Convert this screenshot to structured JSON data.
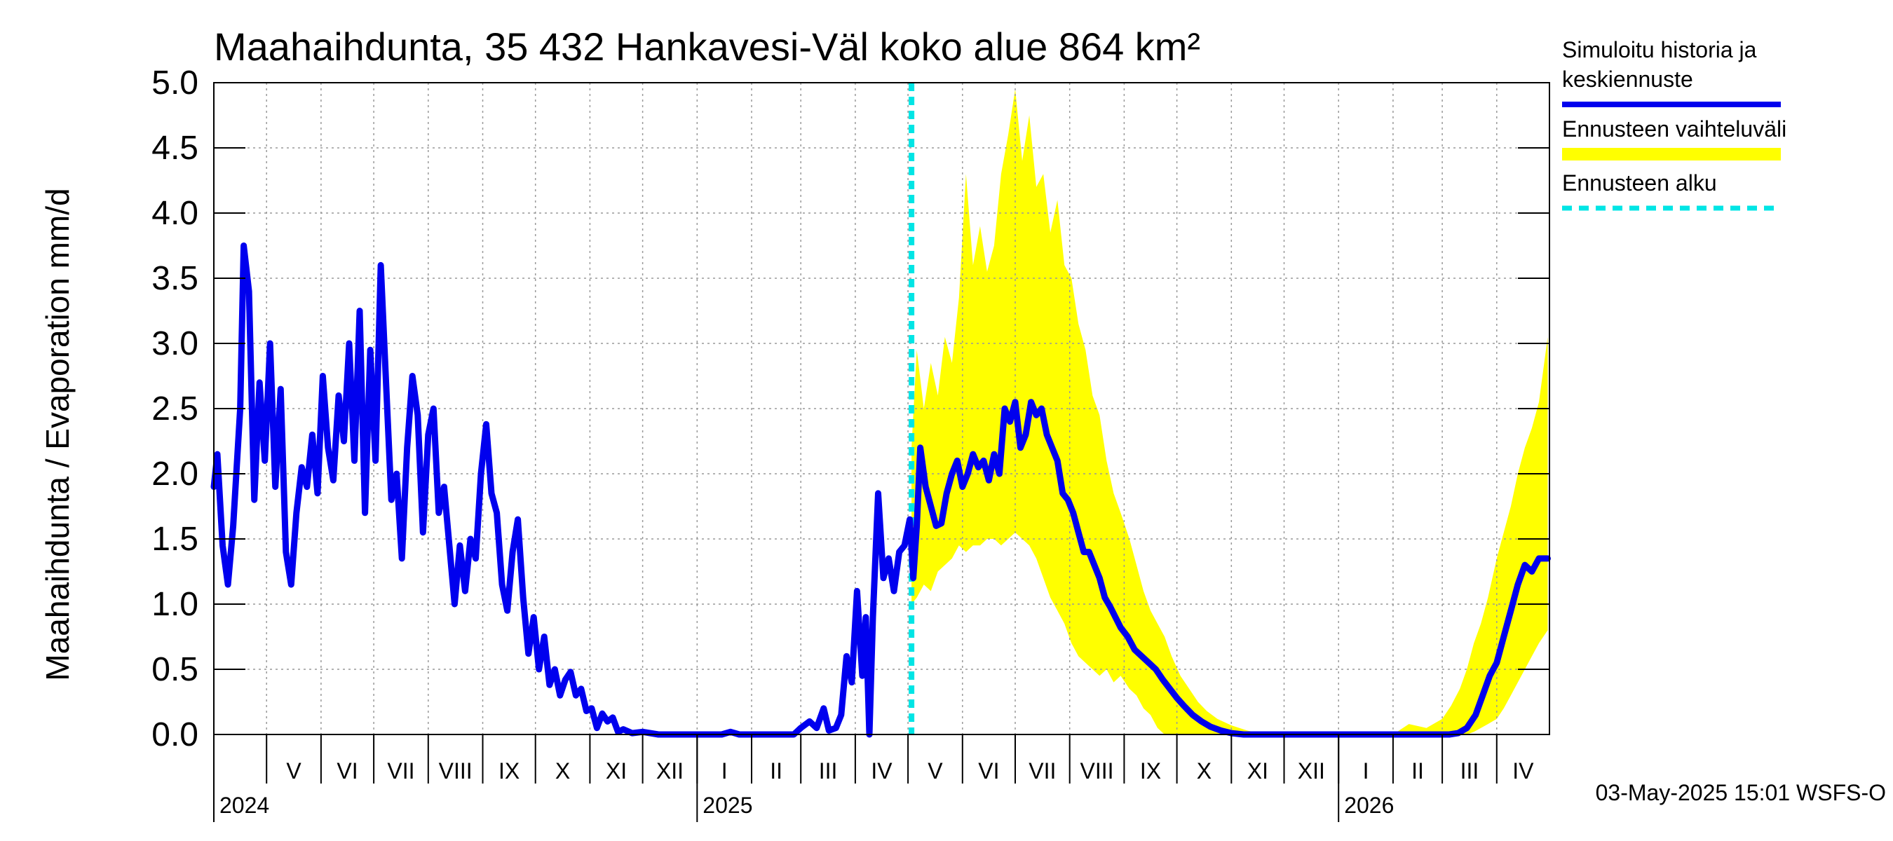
{
  "chart_data": {
    "type": "line",
    "title": "Maahaihdunta, 35 432 Hankavesi-Väl koko alue 864 km²",
    "ylabel": "Maahaihdunta / Evaporation   mm/d",
    "ylim": [
      0.0,
      5.0
    ],
    "yticks": [
      "0.0",
      "0.5",
      "1.0",
      "1.5",
      "2.0",
      "2.5",
      "3.0",
      "3.5",
      "4.0",
      "4.5",
      "5.0"
    ],
    "x_start": "2024-04-01",
    "x_end": "2026-04-30",
    "forecast_start": "2025-05-03",
    "months": [
      {
        "label": "V",
        "start": "2024-05-01"
      },
      {
        "label": "VI",
        "start": "2024-06-01"
      },
      {
        "label": "VII",
        "start": "2024-07-01"
      },
      {
        "label": "VIII",
        "start": "2024-08-01"
      },
      {
        "label": "IX",
        "start": "2024-09-01"
      },
      {
        "label": "X",
        "start": "2024-10-01"
      },
      {
        "label": "XI",
        "start": "2024-11-01"
      },
      {
        "label": "XII",
        "start": "2024-12-01"
      },
      {
        "label": "I",
        "start": "2025-01-01"
      },
      {
        "label": "II",
        "start": "2025-02-01"
      },
      {
        "label": "III",
        "start": "2025-03-01"
      },
      {
        "label": "IV",
        "start": "2025-04-01"
      },
      {
        "label": "V",
        "start": "2025-05-01"
      },
      {
        "label": "VI",
        "start": "2025-06-01"
      },
      {
        "label": "VII",
        "start": "2025-07-01"
      },
      {
        "label": "VIII",
        "start": "2025-08-01"
      },
      {
        "label": "IX",
        "start": "2025-09-01"
      },
      {
        "label": "X",
        "start": "2025-10-01"
      },
      {
        "label": "XI",
        "start": "2025-11-01"
      },
      {
        "label": "XII",
        "start": "2025-12-01"
      },
      {
        "label": "I",
        "start": "2026-01-01"
      },
      {
        "label": "II",
        "start": "2026-02-01"
      },
      {
        "label": "III",
        "start": "2026-03-01"
      },
      {
        "label": "IV",
        "start": "2026-04-01"
      }
    ],
    "years": [
      {
        "label": "2024",
        "at": "2024-04-01"
      },
      {
        "label": "2025",
        "at": "2025-01-01"
      },
      {
        "label": "2026",
        "at": "2026-01-01"
      }
    ],
    "series": [
      {
        "name": "Simuloitu historia ja keskiennuste",
        "color": "#0000ee",
        "points": [
          [
            "2024-04-01",
            1.9
          ],
          [
            "2024-04-03",
            2.15
          ],
          [
            "2024-04-06",
            1.45
          ],
          [
            "2024-04-09",
            1.15
          ],
          [
            "2024-04-12",
            1.6
          ],
          [
            "2024-04-16",
            2.5
          ],
          [
            "2024-04-18",
            3.75
          ],
          [
            "2024-04-21",
            3.4
          ],
          [
            "2024-04-24",
            1.8
          ],
          [
            "2024-04-27",
            2.7
          ],
          [
            "2024-04-30",
            2.1
          ],
          [
            "2024-05-03",
            3.0
          ],
          [
            "2024-05-06",
            1.9
          ],
          [
            "2024-05-09",
            2.65
          ],
          [
            "2024-05-12",
            1.4
          ],
          [
            "2024-05-15",
            1.15
          ],
          [
            "2024-05-18",
            1.7
          ],
          [
            "2024-05-21",
            2.05
          ],
          [
            "2024-05-24",
            1.9
          ],
          [
            "2024-05-27",
            2.3
          ],
          [
            "2024-05-30",
            1.85
          ],
          [
            "2024-06-02",
            2.75
          ],
          [
            "2024-06-05",
            2.2
          ],
          [
            "2024-06-08",
            1.95
          ],
          [
            "2024-06-11",
            2.6
          ],
          [
            "2024-06-14",
            2.25
          ],
          [
            "2024-06-17",
            3.0
          ],
          [
            "2024-06-20",
            2.1
          ],
          [
            "2024-06-23",
            3.25
          ],
          [
            "2024-06-26",
            1.7
          ],
          [
            "2024-06-29",
            2.95
          ],
          [
            "2024-07-02",
            2.1
          ],
          [
            "2024-07-05",
            3.6
          ],
          [
            "2024-07-08",
            2.7
          ],
          [
            "2024-07-11",
            1.8
          ],
          [
            "2024-07-14",
            2.0
          ],
          [
            "2024-07-17",
            1.35
          ],
          [
            "2024-07-20",
            2.2
          ],
          [
            "2024-07-23",
            2.75
          ],
          [
            "2024-07-26",
            2.45
          ],
          [
            "2024-07-29",
            1.55
          ],
          [
            "2024-08-01",
            2.3
          ],
          [
            "2024-08-04",
            2.5
          ],
          [
            "2024-08-07",
            1.7
          ],
          [
            "2024-08-10",
            1.9
          ],
          [
            "2024-08-13",
            1.45
          ],
          [
            "2024-08-16",
            1.0
          ],
          [
            "2024-08-19",
            1.45
          ],
          [
            "2024-08-22",
            1.1
          ],
          [
            "2024-08-25",
            1.5
          ],
          [
            "2024-08-28",
            1.35
          ],
          [
            "2024-08-31",
            2.0
          ],
          [
            "2024-09-03",
            2.38
          ],
          [
            "2024-09-06",
            1.85
          ],
          [
            "2024-09-09",
            1.7
          ],
          [
            "2024-09-12",
            1.15
          ],
          [
            "2024-09-15",
            0.95
          ],
          [
            "2024-09-18",
            1.4
          ],
          [
            "2024-09-21",
            1.65
          ],
          [
            "2024-09-24",
            1.05
          ],
          [
            "2024-09-27",
            0.62
          ],
          [
            "2024-09-30",
            0.9
          ],
          [
            "2024-10-03",
            0.5
          ],
          [
            "2024-10-06",
            0.75
          ],
          [
            "2024-10-09",
            0.38
          ],
          [
            "2024-10-12",
            0.5
          ],
          [
            "2024-10-15",
            0.3
          ],
          [
            "2024-10-18",
            0.42
          ],
          [
            "2024-10-21",
            0.48
          ],
          [
            "2024-10-24",
            0.3
          ],
          [
            "2024-10-27",
            0.35
          ],
          [
            "2024-10-30",
            0.18
          ],
          [
            "2024-11-02",
            0.2
          ],
          [
            "2024-11-05",
            0.05
          ],
          [
            "2024-11-08",
            0.16
          ],
          [
            "2024-11-11",
            0.1
          ],
          [
            "2024-11-14",
            0.13
          ],
          [
            "2024-11-17",
            0.02
          ],
          [
            "2024-11-20",
            0.04
          ],
          [
            "2024-11-25",
            0.01
          ],
          [
            "2024-12-01",
            0.02
          ],
          [
            "2024-12-10",
            0.0
          ],
          [
            "2025-01-15",
            0.0
          ],
          [
            "2025-01-20",
            0.02
          ],
          [
            "2025-01-25",
            0.0
          ],
          [
            "2025-02-25",
            0.0
          ],
          [
            "2025-03-01",
            0.05
          ],
          [
            "2025-03-06",
            0.1
          ],
          [
            "2025-03-10",
            0.05
          ],
          [
            "2025-03-14",
            0.2
          ],
          [
            "2025-03-17",
            0.03
          ],
          [
            "2025-03-21",
            0.05
          ],
          [
            "2025-03-24",
            0.15
          ],
          [
            "2025-03-27",
            0.6
          ],
          [
            "2025-03-30",
            0.4
          ],
          [
            "2025-04-02",
            1.1
          ],
          [
            "2025-04-05",
            0.45
          ],
          [
            "2025-04-07",
            0.9
          ],
          [
            "2025-04-09",
            0.0
          ],
          [
            "2025-04-11",
            0.9
          ],
          [
            "2025-04-14",
            1.85
          ],
          [
            "2025-04-17",
            1.2
          ],
          [
            "2025-04-20",
            1.35
          ],
          [
            "2025-04-23",
            1.1
          ],
          [
            "2025-04-26",
            1.4
          ],
          [
            "2025-04-29",
            1.45
          ],
          [
            "2025-05-02",
            1.65
          ],
          [
            "2025-05-04",
            1.2
          ],
          [
            "2025-05-06",
            1.6
          ],
          [
            "2025-05-08",
            2.2
          ],
          [
            "2025-05-11",
            1.9
          ],
          [
            "2025-05-14",
            1.75
          ],
          [
            "2025-05-17",
            1.6
          ],
          [
            "2025-05-20",
            1.62
          ],
          [
            "2025-05-23",
            1.85
          ],
          [
            "2025-05-26",
            2.0
          ],
          [
            "2025-05-29",
            2.1
          ],
          [
            "2025-06-01",
            1.9
          ],
          [
            "2025-06-04",
            2.0
          ],
          [
            "2025-06-07",
            2.15
          ],
          [
            "2025-06-10",
            2.05
          ],
          [
            "2025-06-13",
            2.1
          ],
          [
            "2025-06-16",
            1.95
          ],
          [
            "2025-06-19",
            2.15
          ],
          [
            "2025-06-22",
            2.0
          ],
          [
            "2025-06-25",
            2.5
          ],
          [
            "2025-06-28",
            2.4
          ],
          [
            "2025-07-01",
            2.55
          ],
          [
            "2025-07-04",
            2.2
          ],
          [
            "2025-07-07",
            2.3
          ],
          [
            "2025-07-10",
            2.55
          ],
          [
            "2025-07-13",
            2.45
          ],
          [
            "2025-07-16",
            2.5
          ],
          [
            "2025-07-19",
            2.3
          ],
          [
            "2025-07-22",
            2.2
          ],
          [
            "2025-07-25",
            2.1
          ],
          [
            "2025-07-28",
            1.85
          ],
          [
            "2025-07-31",
            1.8
          ],
          [
            "2025-08-03",
            1.7
          ],
          [
            "2025-08-06",
            1.55
          ],
          [
            "2025-08-09",
            1.4
          ],
          [
            "2025-08-12",
            1.4
          ],
          [
            "2025-08-15",
            1.3
          ],
          [
            "2025-08-18",
            1.2
          ],
          [
            "2025-08-21",
            1.05
          ],
          [
            "2025-08-24",
            0.98
          ],
          [
            "2025-08-27",
            0.9
          ],
          [
            "2025-08-30",
            0.82
          ],
          [
            "2025-09-03",
            0.75
          ],
          [
            "2025-09-07",
            0.65
          ],
          [
            "2025-09-11",
            0.6
          ],
          [
            "2025-09-15",
            0.55
          ],
          [
            "2025-09-19",
            0.5
          ],
          [
            "2025-09-23",
            0.42
          ],
          [
            "2025-09-27",
            0.35
          ],
          [
            "2025-10-01",
            0.28
          ],
          [
            "2025-10-05",
            0.22
          ],
          [
            "2025-10-10",
            0.15
          ],
          [
            "2025-10-15",
            0.1
          ],
          [
            "2025-10-20",
            0.06
          ],
          [
            "2025-10-26",
            0.03
          ],
          [
            "2025-11-01",
            0.01
          ],
          [
            "2025-11-08",
            0.0
          ],
          [
            "2026-03-05",
            0.0
          ],
          [
            "2026-03-10",
            0.01
          ],
          [
            "2026-03-15",
            0.05
          ],
          [
            "2026-03-20",
            0.15
          ],
          [
            "2026-03-24",
            0.3
          ],
          [
            "2026-03-28",
            0.45
          ],
          [
            "2026-04-01",
            0.55
          ],
          [
            "2026-04-05",
            0.75
          ],
          [
            "2026-04-09",
            0.95
          ],
          [
            "2026-04-13",
            1.15
          ],
          [
            "2026-04-17",
            1.3
          ],
          [
            "2026-04-21",
            1.25
          ],
          [
            "2026-04-25",
            1.35
          ],
          [
            "2026-04-30",
            1.35
          ]
        ]
      }
    ],
    "band": {
      "name": "Ennusteen vaihteluväli",
      "color": "#ffff00",
      "points": [
        [
          "2025-05-03",
          1.0,
          2.2
        ],
        [
          "2025-05-06",
          1.05,
          2.95
        ],
        [
          "2025-05-10",
          1.15,
          2.5
        ],
        [
          "2025-05-14",
          1.1,
          2.85
        ],
        [
          "2025-05-18",
          1.25,
          2.6
        ],
        [
          "2025-05-22",
          1.3,
          3.05
        ],
        [
          "2025-05-26",
          1.35,
          2.85
        ],
        [
          "2025-05-30",
          1.45,
          3.35
        ],
        [
          "2025-06-03",
          1.4,
          4.3
        ],
        [
          "2025-06-07",
          1.45,
          3.6
        ],
        [
          "2025-06-11",
          1.45,
          3.9
        ],
        [
          "2025-06-15",
          1.5,
          3.55
        ],
        [
          "2025-06-19",
          1.5,
          3.75
        ],
        [
          "2025-06-23",
          1.45,
          4.3
        ],
        [
          "2025-06-27",
          1.5,
          4.6
        ],
        [
          "2025-07-01",
          1.55,
          4.95
        ],
        [
          "2025-07-05",
          1.5,
          4.4
        ],
        [
          "2025-07-09",
          1.45,
          4.75
        ],
        [
          "2025-07-13",
          1.35,
          4.2
        ],
        [
          "2025-07-17",
          1.2,
          4.3
        ],
        [
          "2025-07-21",
          1.05,
          3.85
        ],
        [
          "2025-07-25",
          0.95,
          4.1
        ],
        [
          "2025-07-29",
          0.85,
          3.6
        ],
        [
          "2025-08-02",
          0.7,
          3.5
        ],
        [
          "2025-08-06",
          0.6,
          3.15
        ],
        [
          "2025-08-10",
          0.55,
          2.95
        ],
        [
          "2025-08-14",
          0.5,
          2.6
        ],
        [
          "2025-08-18",
          0.45,
          2.45
        ],
        [
          "2025-08-22",
          0.5,
          2.1
        ],
        [
          "2025-08-26",
          0.4,
          1.85
        ],
        [
          "2025-08-30",
          0.45,
          1.7
        ],
        [
          "2025-09-04",
          0.35,
          1.5
        ],
        [
          "2025-09-08",
          0.3,
          1.3
        ],
        [
          "2025-09-12",
          0.2,
          1.1
        ],
        [
          "2025-09-16",
          0.15,
          0.95
        ],
        [
          "2025-09-20",
          0.05,
          0.85
        ],
        [
          "2025-09-24",
          0.0,
          0.75
        ],
        [
          "2025-09-28",
          0.0,
          0.6
        ],
        [
          "2025-10-03",
          0.0,
          0.45
        ],
        [
          "2025-10-08",
          0.0,
          0.35
        ],
        [
          "2025-10-13",
          0.0,
          0.25
        ],
        [
          "2025-10-18",
          0.0,
          0.18
        ],
        [
          "2025-10-24",
          0.0,
          0.12
        ],
        [
          "2025-11-01",
          0.0,
          0.07
        ],
        [
          "2025-11-10",
          0.0,
          0.03
        ],
        [
          "2025-11-20",
          0.0,
          0.0
        ],
        [
          "2026-02-01",
          0.0,
          0.0
        ],
        [
          "2026-02-10",
          0.0,
          0.08
        ],
        [
          "2026-02-20",
          0.0,
          0.05
        ],
        [
          "2026-03-01",
          0.0,
          0.12
        ],
        [
          "2026-03-06",
          0.0,
          0.22
        ],
        [
          "2026-03-11",
          0.0,
          0.35
        ],
        [
          "2026-03-15",
          0.0,
          0.5
        ],
        [
          "2026-03-19",
          0.02,
          0.7
        ],
        [
          "2026-03-23",
          0.05,
          0.85
        ],
        [
          "2026-03-27",
          0.08,
          1.05
        ],
        [
          "2026-04-01",
          0.12,
          1.35
        ],
        [
          "2026-04-05",
          0.2,
          1.55
        ],
        [
          "2026-04-09",
          0.3,
          1.75
        ],
        [
          "2026-04-13",
          0.4,
          2.0
        ],
        [
          "2026-04-17",
          0.5,
          2.2
        ],
        [
          "2026-04-21",
          0.6,
          2.35
        ],
        [
          "2026-04-25",
          0.7,
          2.55
        ],
        [
          "2026-04-30",
          0.8,
          3.05
        ]
      ]
    },
    "legend": [
      {
        "label_lines": [
          "Simuloitu historia ja",
          "keskiennuste"
        ],
        "color": "#0000ee",
        "style": "solid"
      },
      {
        "label_lines": [
          "Ennusteen vaihteluväli"
        ],
        "color": "#ffff00",
        "style": "thick"
      },
      {
        "label_lines": [
          "Ennusteen alku"
        ],
        "color": "#00e5e5",
        "style": "dashed"
      }
    ],
    "legend_position": "right",
    "grid": true,
    "footer": "03-May-2025 15:01 WSFS-O"
  }
}
